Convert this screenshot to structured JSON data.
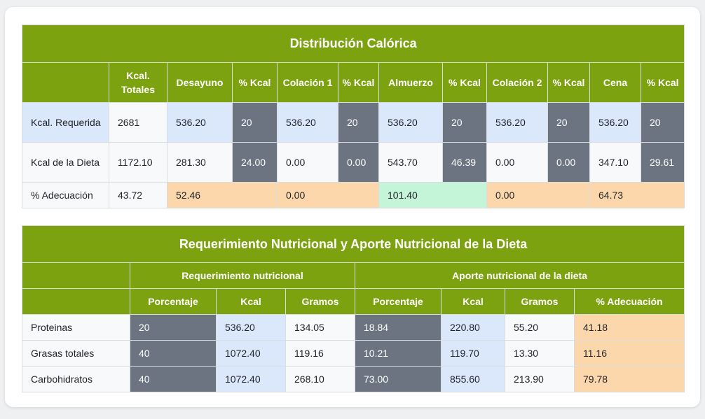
{
  "distribucion": {
    "title": "Distribución Calórica",
    "headers": [
      "Kcal. Totales",
      "Desayuno",
      "% Kcal",
      "Colación 1",
      "% Kcal",
      "Almuerzo",
      "% Kcal",
      "Colación 2",
      "% Kcal",
      "Cena",
      "% Kcal"
    ],
    "rows": [
      {
        "label": "Kcal. Requerida",
        "totales": "2681",
        "desayuno": "536.20",
        "desayuno_pct": "20",
        "colacion1": "536.20",
        "colacion1_pct": "20",
        "almuerzo": "536.20",
        "almuerzo_pct": "20",
        "colacion2": "536.20",
        "colacion2_pct": "20",
        "cena": "536.20",
        "cena_pct": "20"
      },
      {
        "label": "Kcal de la Dieta",
        "totales": "1172.10",
        "desayuno": "281.30",
        "desayuno_pct": "24.00",
        "colacion1": "0.00",
        "colacion1_pct": "0.00",
        "almuerzo": "543.70",
        "almuerzo_pct": "46.39",
        "colacion2": "0.00",
        "colacion2_pct": "0.00",
        "cena": "347.10",
        "cena_pct": "29.61"
      }
    ],
    "adecuacion": {
      "label": "% Adecuación",
      "totales": "43.72",
      "desayuno": "52.46",
      "colacion1": "0.00",
      "almuerzo": "101.40",
      "colacion2": "0.00",
      "cena": "64.73"
    }
  },
  "requerimiento": {
    "title": "Requerimiento Nutricional y Aporte Nutricional de la Dieta",
    "group_req": "Requerimiento nutricional",
    "group_aporte": "Aporte nutricional de la dieta",
    "headers": [
      "Porcentaje",
      "Kcal",
      "Gramos",
      "Porcentaje",
      "Kcal",
      "Gramos",
      "% Adecuación"
    ],
    "rows": [
      {
        "label": "Proteinas",
        "req_pct": "20",
        "req_kcal": "536.20",
        "req_g": "134.05",
        "ap_pct": "18.84",
        "ap_kcal": "220.80",
        "ap_g": "55.20",
        "adec": "41.18"
      },
      {
        "label": "Grasas totales",
        "req_pct": "40",
        "req_kcal": "1072.40",
        "req_g": "119.16",
        "ap_pct": "10.21",
        "ap_kcal": "119.70",
        "ap_g": "13.30",
        "adec": "11.16"
      },
      {
        "label": "Carbohidratos",
        "req_pct": "40",
        "req_kcal": "1072.40",
        "req_g": "268.10",
        "ap_pct": "73.00",
        "ap_kcal": "855.60",
        "ap_g": "213.90",
        "adec": "79.78"
      }
    ]
  },
  "colors": {
    "header_green": "#7da20f",
    "cell_blue": "#dbe7fb",
    "cell_gray": "#6b7480",
    "cell_peach": "#fdd7ac",
    "cell_green": "#c5f5d8"
  }
}
